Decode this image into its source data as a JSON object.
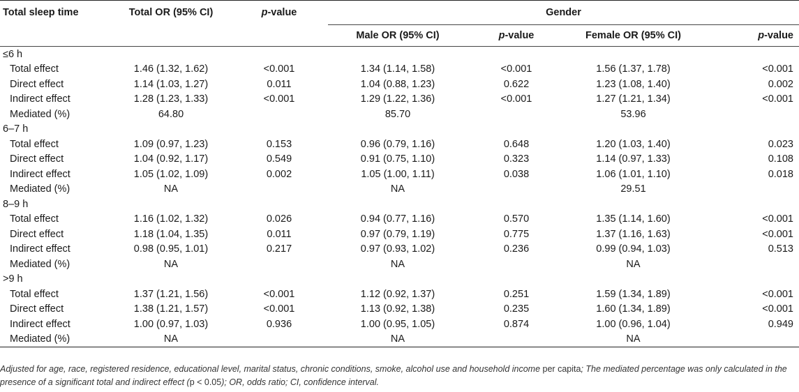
{
  "header": {
    "col_sleep": "Total sleep time",
    "col_total_or": "Total OR (95% CI)",
    "col_p_prefix": "p",
    "col_p_suffix": "-value",
    "gender": "Gender",
    "male_or": "Male OR (95% CI)",
    "female_or": "Female OR (95% CI)"
  },
  "groups": [
    {
      "label": "≤6 h",
      "rows": [
        {
          "label": "Total effect",
          "total": "1.46 (1.32, 1.62)",
          "p": "<0.001",
          "male": "1.34 (1.14, 1.58)",
          "male_p": "<0.001",
          "female": "1.56 (1.37, 1.78)",
          "female_p": "<0.001"
        },
        {
          "label": "Direct effect",
          "total": "1.14 (1.03, 1.27)",
          "p": "0.011",
          "male": "1.04 (0.88, 1.23)",
          "male_p": "0.622",
          "female": "1.23 (1.08, 1.40)",
          "female_p": "0.002"
        },
        {
          "label": "Indirect effect",
          "total": "1.28 (1.23, 1.33)",
          "p": "<0.001",
          "male": "1.29 (1.22, 1.36)",
          "male_p": "<0.001",
          "female": "1.27 (1.21, 1.34)",
          "female_p": "<0.001"
        },
        {
          "label": "Mediated (%)",
          "total": "64.80",
          "p": "",
          "male": "85.70",
          "male_p": "",
          "female": "53.96",
          "female_p": ""
        }
      ]
    },
    {
      "label": "6–7 h",
      "rows": [
        {
          "label": "Total effect",
          "total": "1.09 (0.97, 1.23)",
          "p": "0.153",
          "male": "0.96 (0.79, 1.16)",
          "male_p": "0.648",
          "female": "1.20 (1.03, 1.40)",
          "female_p": "0.023"
        },
        {
          "label": "Direct effect",
          "total": "1.04 (0.92, 1.17)",
          "p": "0.549",
          "male": "0.91 (0.75, 1.10)",
          "male_p": "0.323",
          "female": "1.14 (0.97, 1.33)",
          "female_p": "0.108"
        },
        {
          "label": "Indirect effect",
          "total": "1.05 (1.02, 1.09)",
          "p": "0.002",
          "male": "1.05 (1.00, 1.11)",
          "male_p": "0.038",
          "female": "1.06 (1.01, 1.10)",
          "female_p": "0.018"
        },
        {
          "label": "Mediated (%)",
          "total": "NA",
          "p": "",
          "male": "NA",
          "male_p": "",
          "female": "29.51",
          "female_p": ""
        }
      ]
    },
    {
      "label": "8–9 h",
      "rows": [
        {
          "label": "Total effect",
          "total": "1.16 (1.02, 1.32)",
          "p": "0.026",
          "male": "0.94 (0.77, 1.16)",
          "male_p": "0.570",
          "female": "1.35 (1.14, 1.60)",
          "female_p": "<0.001"
        },
        {
          "label": "Direct effect",
          "total": "1.18 (1.04, 1.35)",
          "p": "0.011",
          "male": "0.97 (0.79, 1.19)",
          "male_p": "0.775",
          "female": "1.37 (1.16, 1.63)",
          "female_p": "<0.001"
        },
        {
          "label": "Indirect effect",
          "total": "0.98 (0.95, 1.01)",
          "p": "0.217",
          "male": "0.97 (0.93, 1.02)",
          "male_p": "0.236",
          "female": "0.99 (0.94, 1.03)",
          "female_p": "0.513"
        },
        {
          "label": "Mediated (%)",
          "total": "NA",
          "p": "",
          "male": "NA",
          "male_p": "",
          "female": "NA",
          "female_p": ""
        }
      ]
    },
    {
      "label": ">9 h",
      "rows": [
        {
          "label": "Total effect",
          "total": "1.37 (1.21, 1.56)",
          "p": "<0.001",
          "male": "1.12 (0.92, 1.37)",
          "male_p": "0.251",
          "female": "1.59 (1.34, 1.89)",
          "female_p": "<0.001"
        },
        {
          "label": "Direct effect",
          "total": "1.38 (1.21, 1.57)",
          "p": "<0.001",
          "male": "1.13 (0.92, 1.38)",
          "male_p": "0.235",
          "female": "1.60 (1.34, 1.89)",
          "female_p": "<0.001"
        },
        {
          "label": "Indirect effect",
          "total": "1.00 (0.97, 1.03)",
          "p": "0.936",
          "male": "1.00 (0.95, 1.05)",
          "male_p": "0.874",
          "female": "1.00 (0.96, 1.04)",
          "female_p": "0.949"
        },
        {
          "label": "Mediated (%)",
          "total": "NA",
          "p": "",
          "male": "NA",
          "male_p": "",
          "female": "NA",
          "female_p": ""
        }
      ]
    }
  ],
  "footnote": {
    "part1": "Adjusted for age, race, registered residence, educational level, marital status, chronic conditions, smoke, alcohol use and household income ",
    "part2": "per capita",
    "part3": "; The mediated percentage was only calculated in the presence of a significant total and indirect effect (",
    "part4": "p < 0.05",
    "part5": "); OR, odds ratio; CI, confidence interval."
  }
}
